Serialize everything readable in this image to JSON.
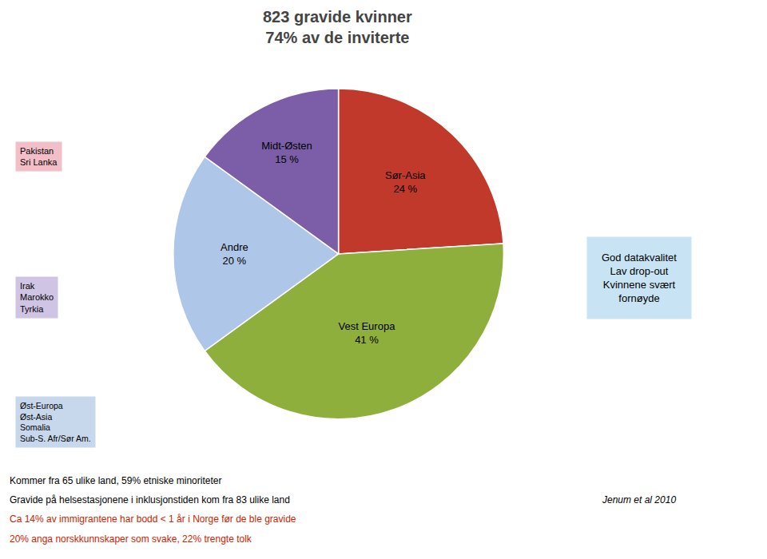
{
  "chart_data": {
    "type": "pie",
    "title": "823 gravide kvinner\n74% av de inviterte",
    "categories": [
      "Sør-Asia",
      "Vest Europa",
      "Andre",
      "Midt-Østen"
    ],
    "values": [
      24,
      41,
      20,
      15
    ],
    "value_labels": [
      "24 %",
      "41 %",
      "20 %",
      "15 %"
    ],
    "colors": [
      "#c0392b",
      "#8faf3c",
      "#aec6e8",
      "#7b5ea7"
    ],
    "data_labels": true,
    "annotations": [
      {
        "text": "Pakistan\nSri Lanka",
        "background": "#f2bfc8"
      },
      {
        "text": "Irak\nMarokko\nTyrkia",
        "background": "#d0c4e4"
      },
      {
        "text": "Øst-Europa\nØst-Asia\nSomalia\nSub-S. Afr/Sør Am.",
        "background": "#c8d8ec"
      },
      {
        "text": "God datakvalitet\nLav drop-out\nKvinnene svært\nfornøyde",
        "background": "#c8e4f4"
      },
      {
        "text": "Kommer fra 65 ulike land, 59% etniske minoriteter",
        "color": "#000000"
      },
      {
        "text": "Gravide på helsestasjonene i inklusjonstiden kom fra 83 ulike land",
        "color": "#000000"
      },
      {
        "text": "Ca 14% av immigrantene har bodd < 1 år i Norge før de ble gravide",
        "color": "#cc2200"
      },
      {
        "text": "20% anga norskkunnskaper som svake, 22% trengte tolk",
        "color": "#cc2200"
      },
      {
        "text": "Jenum et al 2010"
      }
    ]
  }
}
